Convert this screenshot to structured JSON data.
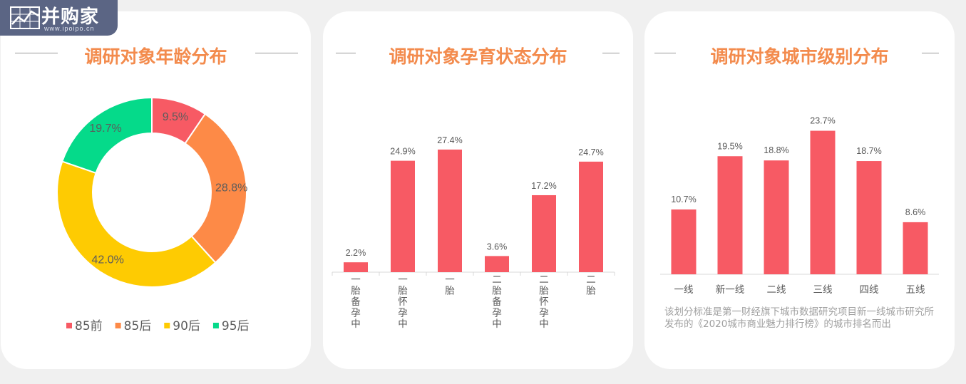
{
  "logo": {
    "text": "并购家",
    "sub": "www.ipoipo.cn"
  },
  "chart_data": [
    {
      "type": "pie",
      "title": "调研对象年龄分布",
      "categories": [
        "85前",
        "85后",
        "90后",
        "95后"
      ],
      "values": [
        9.5,
        28.8,
        42.0,
        19.7
      ],
      "labels": [
        "9.5%",
        "28.8%",
        "42.0%",
        "19.7%"
      ],
      "colors": [
        "#f75a64",
        "#fd8a47",
        "#fecb02",
        "#05da8a"
      ],
      "donut": true,
      "legend": "bottom"
    },
    {
      "type": "bar",
      "title": "调研对象孕育状态分布",
      "categories": [
        "一胎备孕中",
        "一胎怀孕中",
        "一胎",
        "二胎备孕中",
        "二胎怀孕中",
        "二胎"
      ],
      "values": [
        2.2,
        24.9,
        27.4,
        3.6,
        17.2,
        24.7
      ],
      "labels": [
        "2.2%",
        "24.9%",
        "27.4%",
        "3.6%",
        "17.2%",
        "24.7%"
      ],
      "color": "#f75a64",
      "tick_orientation": "vertical"
    },
    {
      "type": "bar",
      "title": "调研对象城市级别分布",
      "categories": [
        "一线",
        "新一线",
        "二线",
        "三线",
        "四线",
        "五线"
      ],
      "values": [
        10.7,
        19.5,
        18.8,
        23.7,
        18.7,
        8.6
      ],
      "labels": [
        "10.7%",
        "19.5%",
        "18.8%",
        "23.7%",
        "18.7%",
        "8.6%"
      ],
      "color": "#f75a64",
      "note": "该划分标准是第一财经旗下城市数据研究项目新一线城市研究所发布的《2020城市商业魅力排行榜》的城市排名而出"
    }
  ]
}
